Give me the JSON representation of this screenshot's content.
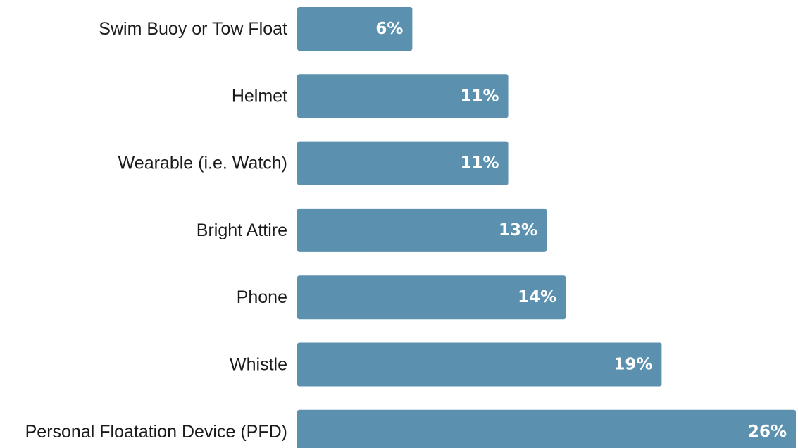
{
  "chart_data": {
    "type": "bar",
    "orientation": "horizontal",
    "categories": [
      "Swim Buoy or Tow Float",
      "Helmet",
      "Wearable (i.e. Watch)",
      "Bright Attire",
      "Phone",
      "Whistle",
      "Personal Floatation Device (PFD)"
    ],
    "values": [
      6,
      11,
      11,
      13,
      14,
      19,
      26
    ],
    "value_labels": [
      "6%",
      "11%",
      "11%",
      "13%",
      "14%",
      "19%",
      "26%"
    ],
    "unit": "%",
    "title": "",
    "xlabel": "",
    "ylabel": "",
    "xlim": [
      0,
      26
    ],
    "grid": false,
    "bar_color": "#5b91ae",
    "label_color": "#ffffff",
    "text_color": "#1a1a1a"
  }
}
